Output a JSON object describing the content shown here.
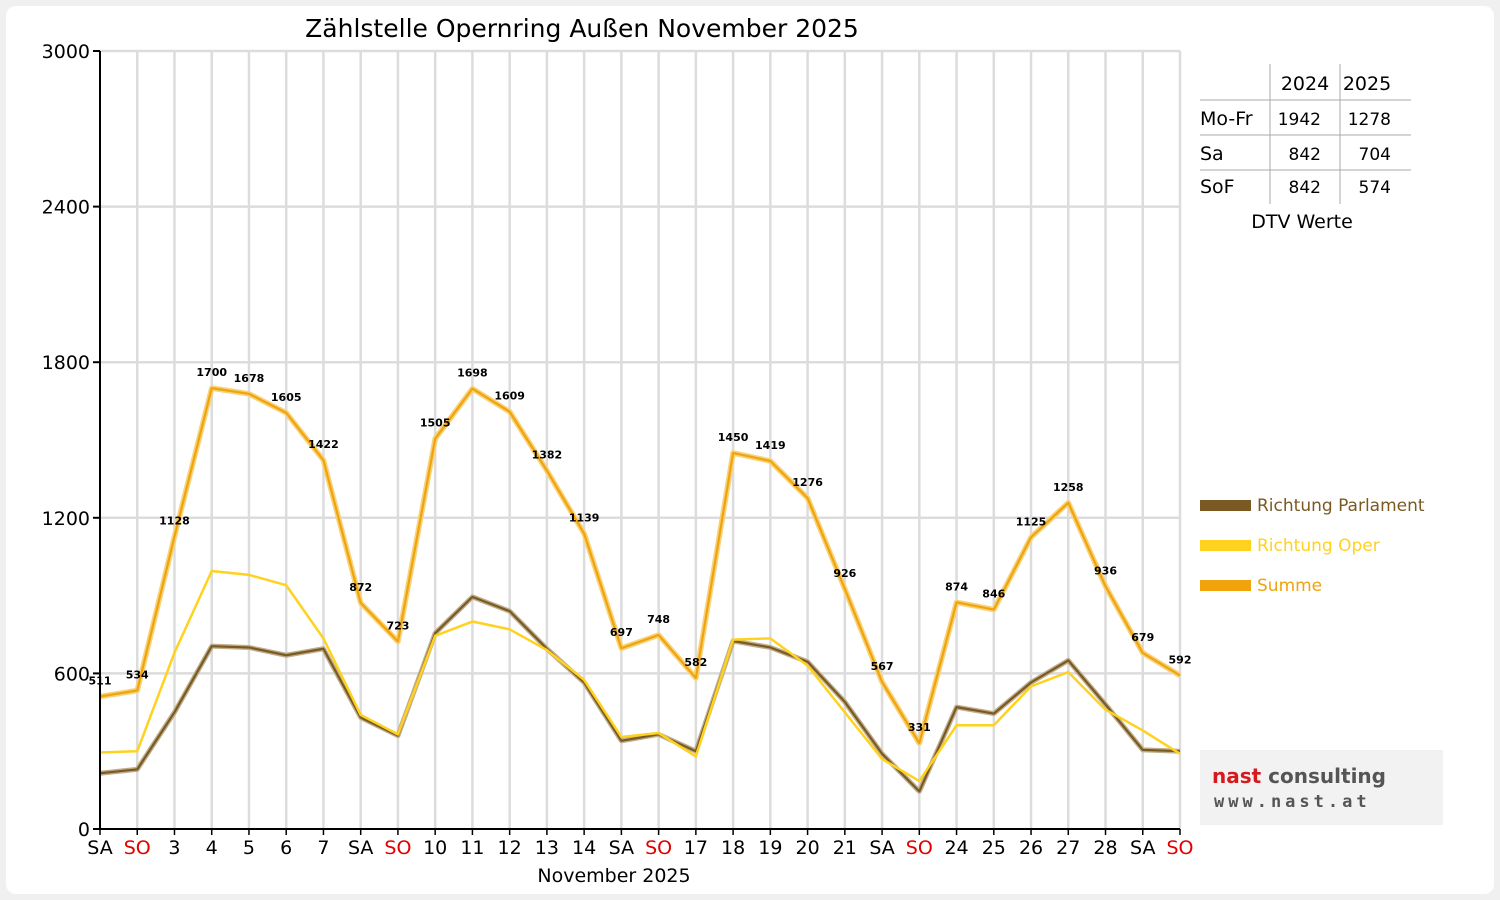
{
  "chart_data": {
    "type": "line",
    "title": "Zählstelle Opernring Außen November 2025",
    "xlabel": "November 2025",
    "ylabel": "",
    "ylim": [
      0,
      3000
    ],
    "yticks": [
      0,
      600,
      1200,
      1800,
      2400,
      3000
    ],
    "grid": true,
    "categories": [
      "SA",
      "SO",
      "3",
      "4",
      "5",
      "6",
      "7",
      "SA",
      "SO",
      "10",
      "11",
      "12",
      "13",
      "14",
      "SA",
      "SO",
      "17",
      "18",
      "19",
      "20",
      "21",
      "SA",
      "SO",
      "24",
      "25",
      "26",
      "27",
      "28",
      "SA",
      "SO"
    ],
    "category_colors": [
      "#000000",
      "#e00000",
      "#000000",
      "#000000",
      "#000000",
      "#000000",
      "#000000",
      "#000000",
      "#e00000",
      "#000000",
      "#000000",
      "#000000",
      "#000000",
      "#000000",
      "#000000",
      "#e00000",
      "#000000",
      "#000000",
      "#000000",
      "#000000",
      "#000000",
      "#000000",
      "#e00000",
      "#000000",
      "#000000",
      "#000000",
      "#000000",
      "#000000",
      "#000000",
      "#e00000"
    ],
    "series": [
      {
        "name": "Richtung Parlament",
        "color": "#7a5a22",
        "values": [
          215,
          230,
          450,
          705,
          700,
          670,
          695,
          430,
          360,
          755,
          895,
          840,
          695,
          565,
          340,
          365,
          300,
          725,
          700,
          645,
          490,
          290,
          145,
          470,
          445,
          565,
          650,
          480,
          305,
          300
        ]
      },
      {
        "name": "Richtung Oper",
        "color": "#ffd21f",
        "values": [
          295,
          300,
          680,
          995,
          980,
          940,
          735,
          440,
          365,
          745,
          800,
          770,
          690,
          575,
          355,
          370,
          280,
          730,
          735,
          630,
          450,
          270,
          185,
          400,
          400,
          550,
          605,
          460,
          380,
          290
        ]
      },
      {
        "name": "Summe",
        "color": "#f0a30a",
        "values": [
          511,
          534,
          1128,
          1700,
          1678,
          1605,
          1422,
          872,
          723,
          1505,
          1698,
          1609,
          1382,
          1139,
          697,
          748,
          582,
          1450,
          1419,
          1276,
          926,
          567,
          331,
          874,
          846,
          1125,
          1258,
          936,
          679,
          592
        ]
      }
    ],
    "data_labels": [
      "511",
      "534",
      "1128",
      "1700",
      "1678",
      "1605",
      "1422",
      "872",
      "723",
      "1505",
      "1698",
      "1609",
      "1382",
      "1139",
      "697",
      "748",
      "582",
      "1450",
      "1419",
      "1276",
      "926",
      "567",
      "331",
      "874",
      "846",
      "1125",
      "1258",
      "936",
      "679",
      "592"
    ],
    "legend_position": "right",
    "dtv_table": {
      "headers": [
        "",
        "2024",
        "2025"
      ],
      "rows": [
        {
          "label": "Mo-Fr",
          "v2024": "1942",
          "v2025": "1278"
        },
        {
          "label": "Sa",
          "v2024": "842",
          "v2025": "704"
        },
        {
          "label": "SoF",
          "v2024": "842",
          "v2025": "574"
        }
      ],
      "caption": "DTV Werte"
    }
  },
  "logo": {
    "name_part1": "nast",
    "name_part2": "consulting",
    "url": "www.nast.at"
  }
}
